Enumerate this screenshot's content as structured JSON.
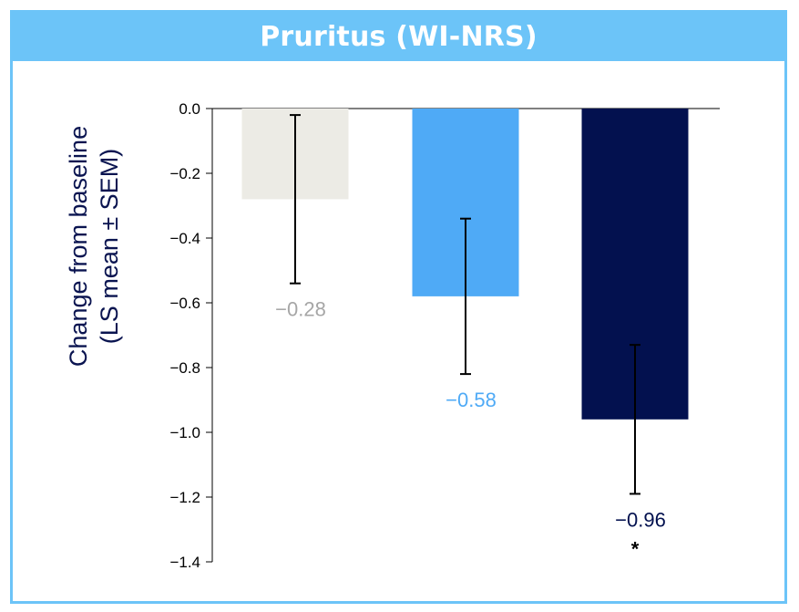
{
  "title": "Pruritus (WI-NRS)",
  "chart_data": {
    "type": "bar",
    "title": "Pruritus (WI-NRS)",
    "ylabel_lines": [
      "Change from baseline",
      "(LS mean ± SEM)"
    ],
    "xlabel": "",
    "ylim": [
      -1.4,
      0.0
    ],
    "yticks": [
      0.0,
      -0.2,
      -0.4,
      -0.6,
      -0.8,
      -1.0,
      -1.2,
      -1.4
    ],
    "ytick_labels": [
      "0.0",
      "−0.2",
      "−0.4",
      "−0.6",
      "−0.8",
      "−1.0",
      "−1.2",
      "−1.4"
    ],
    "values": [
      -0.28,
      -0.58,
      -0.96
    ],
    "value_labels": [
      "−0.28",
      "−0.58",
      "−0.96"
    ],
    "error_low": [
      -0.54,
      -0.82,
      -1.19
    ],
    "error_high": [
      -0.02,
      -0.34,
      -0.73
    ],
    "colors": [
      "#ecebe5",
      "#4faaf6",
      "#03114f"
    ],
    "label_colors": [
      "#a6a6a6",
      "#4faaf6",
      "#03114f"
    ],
    "annotations": [
      "",
      "",
      "*"
    ],
    "grid": false
  }
}
